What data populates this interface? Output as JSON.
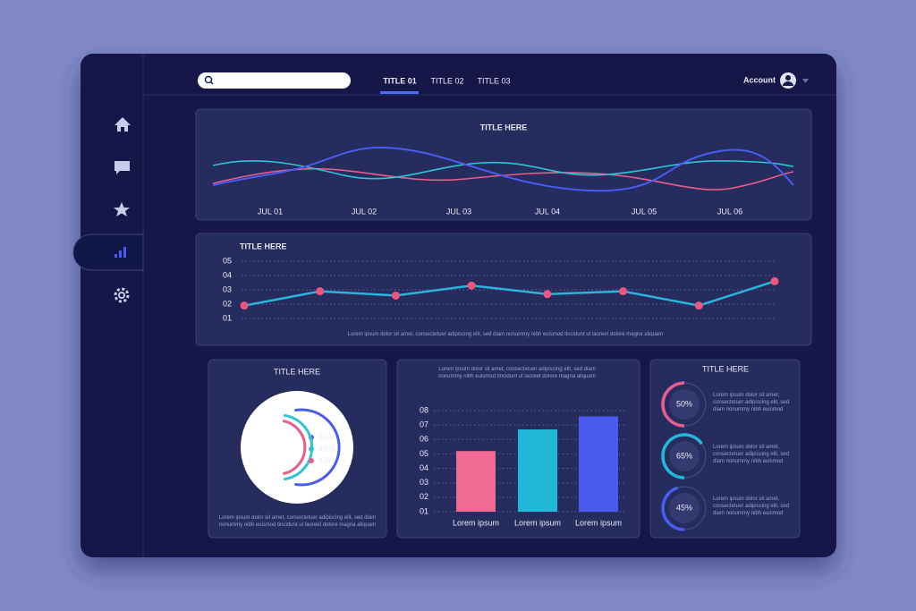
{
  "nav": {
    "tabs": [
      "TITLE 01",
      "TITLE 02",
      "TITLE 03"
    ],
    "account": "Account"
  },
  "wave_panel": {
    "title": "TITLE HERE",
    "categories": [
      "JUL 01",
      "JUL 02",
      "JUL 03",
      "JUL 04",
      "JUL 05",
      "JUL 06"
    ]
  },
  "chart_data": [
    {
      "type": "line",
      "title": "TITLE HERE",
      "note": "Lorem ipsum dolor sit amet, consectetuer adipiscing elit, sed diam nonummy nibh euismod tincidunt ut laoreet dolore magna aliquam",
      "values": [
        1.9,
        2.9,
        2.6,
        3.3,
        2.7,
        2.9,
        1.9,
        3.6
      ],
      "color": "#2bb3d9",
      "marker_color": "#f0557f",
      "ylim": [
        1,
        5
      ],
      "yticks": [
        {
          "value": 1,
          "label": "01"
        },
        {
          "value": 2,
          "label": "02"
        },
        {
          "value": 3,
          "label": "03"
        },
        {
          "value": 4,
          "label": "04"
        },
        {
          "value": 5,
          "label": "05"
        }
      ],
      "grid": true
    },
    {
      "type": "radial",
      "title": "TITLE HERE",
      "note": "Lorem ipsum dolor sit amet, consectetuer adipiscing elit, sed diam nonummy nibh euismod tincidunt ut laoreet dolore magna aliquam",
      "series": [
        {
          "name": "55%",
          "color": "#4a5cf0",
          "value": 55
        },
        {
          "name": "45%",
          "color": "#2ec4d6",
          "value": 45
        },
        {
          "name": "43%",
          "color": "#e85c8e",
          "value": 43
        }
      ]
    },
    {
      "type": "bar",
      "note": "Lorem ipsum dolor sit amet, consectetuer adipiscing elit, sed diam nonummy nibh euismod tincidunt ut laoreet dolore magna aliquam",
      "categories": [
        "Lorem ipsum",
        "Lorem ipsum",
        "Lorem ipsum"
      ],
      "values": [
        5.2,
        6.7,
        7.6
      ],
      "colors": [
        "#f06a94",
        "#22b8d8",
        "#4a5cf0"
      ],
      "ylim": [
        1,
        8
      ],
      "yticks": [
        {
          "value": 1,
          "label": "01"
        },
        {
          "value": 2,
          "label": "02"
        },
        {
          "value": 3,
          "label": "03"
        },
        {
          "value": 4,
          "label": "04"
        },
        {
          "value": 5,
          "label": "05"
        },
        {
          "value": 6,
          "label": "06"
        },
        {
          "value": 7,
          "label": "07"
        },
        {
          "value": 8,
          "label": "08"
        }
      ],
      "grid": true
    },
    {
      "type": "progress",
      "title": "TITLE HERE",
      "values": [
        50,
        65,
        45
      ],
      "value_labels": [
        "50%",
        "65%",
        "45%"
      ],
      "colors": [
        "#e85c8e",
        "#22b8d8",
        "#4a5cf0"
      ],
      "notes": [
        "Lorem ipsum dolor sit amet, consectetuer adipiscing elit, sed diam nonummy nibh euismod",
        "Lorem ipsum dolor sit amet, consectetuer adipiscing elit, sed diam nonummy nibh euismod",
        "Lorem ipsum dolor sit amet, consectetuer adipiscing elit, sed diam nonummy nibh euismod"
      ]
    }
  ]
}
